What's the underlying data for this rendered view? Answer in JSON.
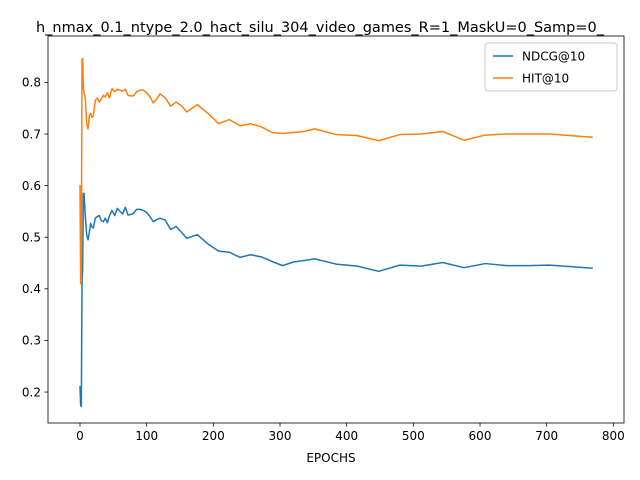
{
  "chart_data": {
    "type": "line",
    "title": "h_nmax_0.1_ntype_2.0_hact_silu_304_video_games_R=1_MaskU=0_Samp=0_",
    "xlabel": "EPOCHS",
    "ylabel": "",
    "xlim": [
      -48,
      816
    ],
    "ylim": [
      0.14,
      0.89
    ],
    "xticks": [
      0,
      100,
      200,
      300,
      400,
      500,
      600,
      700,
      800
    ],
    "yticks": [
      0.2,
      0.3,
      0.4,
      0.5,
      0.6,
      0.7,
      0.8
    ],
    "grid": false,
    "legend_position": "top-right",
    "series": [
      {
        "name": "NDCG@10",
        "color": "#1f77b4",
        "x": [
          0,
          1,
          2,
          3,
          4,
          5,
          6,
          8,
          10,
          12,
          14,
          16,
          18,
          20,
          23,
          26,
          29,
          32,
          35,
          38,
          41,
          44,
          48,
          52,
          56,
          60,
          64,
          68,
          72,
          76,
          80,
          85,
          90,
          95,
          100,
          105,
          110,
          115,
          120,
          128,
          136,
          144,
          152,
          160,
          176,
          192,
          208,
          224,
          240,
          256,
          272,
          288,
          304,
          320,
          336,
          352,
          384,
          416,
          448,
          480,
          512,
          544,
          576,
          608,
          640,
          672,
          704,
          736,
          768
        ],
        "y": [
          0.21,
          0.175,
          0.172,
          0.41,
          0.44,
          0.585,
          0.585,
          0.54,
          0.505,
          0.495,
          0.51,
          0.527,
          0.52,
          0.518,
          0.537,
          0.54,
          0.542,
          0.532,
          0.53,
          0.537,
          0.528,
          0.541,
          0.552,
          0.542,
          0.556,
          0.55,
          0.545,
          0.558,
          0.543,
          0.544,
          0.546,
          0.554,
          0.554,
          0.552,
          0.548,
          0.54,
          0.53,
          0.534,
          0.537,
          0.533,
          0.515,
          0.521,
          0.51,
          0.498,
          0.505,
          0.487,
          0.473,
          0.471,
          0.461,
          0.466,
          0.462,
          0.453,
          0.445,
          0.452,
          0.455,
          0.458,
          0.448,
          0.444,
          0.434,
          0.446,
          0.444,
          0.451,
          0.441,
          0.449,
          0.445,
          0.445,
          0.446,
          0.443,
          0.44
        ]
      },
      {
        "name": "HIT@10",
        "color": "#ff7f0e",
        "x": [
          0,
          1,
          2,
          3,
          4,
          5,
          6,
          8,
          10,
          12,
          14,
          16,
          18,
          20,
          23,
          26,
          29,
          32,
          35,
          38,
          41,
          44,
          48,
          52,
          56,
          60,
          64,
          68,
          72,
          76,
          80,
          85,
          90,
          95,
          100,
          105,
          110,
          115,
          120,
          128,
          136,
          144,
          152,
          160,
          176,
          192,
          208,
          224,
          240,
          256,
          272,
          288,
          304,
          320,
          336,
          352,
          384,
          416,
          448,
          480,
          512,
          544,
          576,
          608,
          640,
          672,
          704,
          736,
          768
        ],
        "y": [
          0.6,
          0.41,
          0.415,
          0.845,
          0.846,
          0.79,
          0.78,
          0.77,
          0.72,
          0.71,
          0.735,
          0.74,
          0.732,
          0.735,
          0.765,
          0.77,
          0.762,
          0.768,
          0.775,
          0.772,
          0.78,
          0.77,
          0.788,
          0.782,
          0.787,
          0.785,
          0.783,
          0.787,
          0.775,
          0.774,
          0.774,
          0.782,
          0.785,
          0.785,
          0.78,
          0.772,
          0.76,
          0.768,
          0.778,
          0.77,
          0.754,
          0.762,
          0.755,
          0.743,
          0.757,
          0.74,
          0.72,
          0.728,
          0.716,
          0.72,
          0.714,
          0.703,
          0.701,
          0.703,
          0.705,
          0.71,
          0.699,
          0.697,
          0.687,
          0.699,
          0.7,
          0.705,
          0.688,
          0.698,
          0.7,
          0.7,
          0.7,
          0.697,
          0.694
        ]
      }
    ]
  }
}
